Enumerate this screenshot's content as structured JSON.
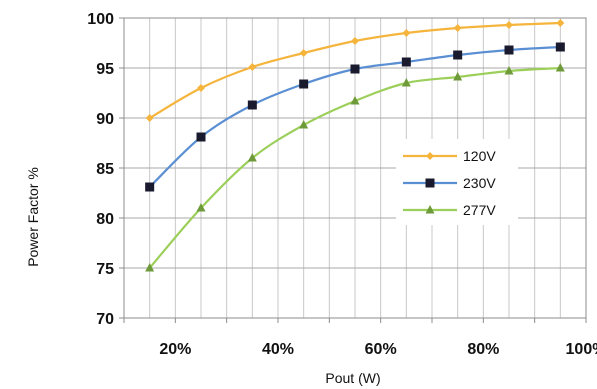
{
  "chart_data": {
    "type": "line",
    "title": "",
    "xlabel": "Pout (W)",
    "ylabel": "Power Factor %",
    "x": [
      0.15,
      0.25,
      0.35,
      0.45,
      0.55,
      0.65,
      0.75,
      0.85,
      0.95
    ],
    "xlim": [
      0.1,
      1.0
    ],
    "x_ticks": [
      "20%",
      "40%",
      "60%",
      "80%",
      "100%"
    ],
    "ylim": [
      70,
      100
    ],
    "y_ticks": [
      "70",
      "75",
      "80",
      "85",
      "90",
      "95",
      "100"
    ],
    "grid": true,
    "legend_position": "right-center",
    "series": [
      {
        "name": "120V",
        "color": "#f5b43c",
        "marker": "diamond",
        "values": [
          90.0,
          93.0,
          95.1,
          96.5,
          97.7,
          98.5,
          99.0,
          99.3,
          99.5
        ]
      },
      {
        "name": "230V",
        "color": "#5b8fd3",
        "marker": "square",
        "values": [
          83.1,
          88.1,
          91.3,
          93.4,
          94.9,
          95.6,
          96.3,
          96.8,
          97.1
        ]
      },
      {
        "name": "277V",
        "color": "#9ccf5a",
        "marker": "triangle",
        "values": [
          75.0,
          81.0,
          86.0,
          89.3,
          91.7,
          93.5,
          94.1,
          94.7,
          95.0
        ]
      }
    ]
  }
}
